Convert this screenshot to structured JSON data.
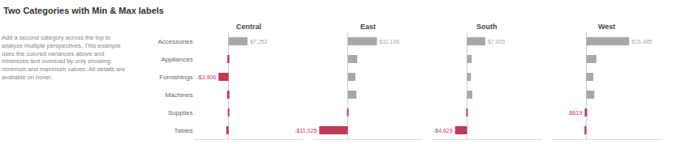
{
  "title": "Two Categories with Min & Max labels",
  "subtitle": "Add a second category across the top to\nanalyze multiple perspectives. This example\nuses the colored variances above and\nminimizes text overload by only showing\nminimum and maximum values. All details are\navailable on hover.",
  "chart_data": [
    {
      "type": "bar",
      "title": "Central",
      "orientation": "horizontal",
      "categories": [
        "Accessories",
        "Appliances",
        "Furnishings",
        "Machines",
        "Supplies",
        "Tables"
      ],
      "values": [
        7252,
        -500,
        -3906,
        -600,
        -350,
        -900
      ],
      "colors": [
        "#a8a8a8",
        "#c0395a",
        "#c0395a",
        "#c0395a",
        "#c0395a",
        "#c0395a"
      ],
      "data_labels": true,
      "value_labels": [
        "$7,252",
        null,
        "-$3,906",
        null,
        null,
        null
      ],
      "xlim": [
        -13461.85,
        28848.75
      ],
      "xticks": [],
      "grid": false,
      "tick_labels": "y"
    },
    {
      "type": "bar",
      "title": "East",
      "orientation": "horizontal",
      "categories": [
        "Accessories",
        "Appliances",
        "Furnishings",
        "Machines",
        "Supplies",
        "Tables"
      ],
      "values": [
        11196,
        3600,
        2900,
        3300,
        -280,
        -11025
      ],
      "colors": [
        "#a8a8a8",
        "#a8a8a8",
        "#a8a8a8",
        "#a8a8a8",
        "#c0395a",
        "#c0395a"
      ],
      "data_labels": true,
      "value_labels": [
        "$11,196",
        null,
        null,
        null,
        null,
        "-$11,025"
      ],
      "xlim": [
        -13461.85,
        28848.75
      ],
      "xticks": [],
      "grid": false,
      "tick_labels": false
    },
    {
      "type": "bar",
      "title": "South",
      "orientation": "horizontal",
      "categories": [
        "Accessories",
        "Appliances",
        "Furnishings",
        "Machines",
        "Supplies",
        "Tables"
      ],
      "values": [
        7005,
        1800,
        1500,
        2000,
        -180,
        -4623
      ],
      "colors": [
        "#a8a8a8",
        "#a8a8a8",
        "#a8a8a8",
        "#a8a8a8",
        "#c0395a",
        "#c0395a"
      ],
      "data_labels": true,
      "value_labels": [
        "$7,005",
        null,
        null,
        null,
        null,
        "-$4,623"
      ],
      "xlim": [
        -13461.85,
        28848.75
      ],
      "xticks": [],
      "grid": false,
      "tick_labels": false
    },
    {
      "type": "bar",
      "title": "West",
      "orientation": "horizontal",
      "categories": [
        "Accessories",
        "Appliances",
        "Furnishings",
        "Machines",
        "Supplies",
        "Tables"
      ],
      "values": [
        16485,
        3900,
        2700,
        3100,
        -619,
        -700
      ],
      "colors": [
        "#a8a8a8",
        "#a8a8a8",
        "#a8a8a8",
        "#a8a8a8",
        "#c0395a",
        "#c0395a"
      ],
      "data_labels": true,
      "value_labels": [
        "$16,485",
        null,
        null,
        null,
        "-$619",
        null
      ],
      "xlim": [
        -13461.85,
        28848.75
      ],
      "xticks": [],
      "grid": false,
      "tick_labels": false
    }
  ]
}
